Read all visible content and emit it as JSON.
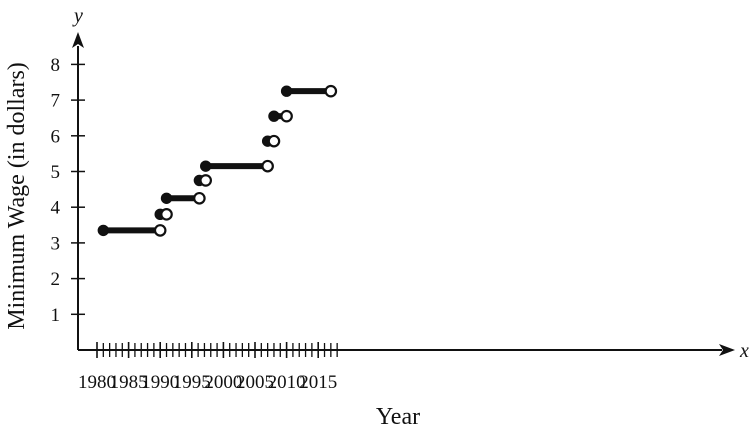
{
  "chart_data": {
    "type": "line",
    "subtype": "step",
    "xlabel": "Year",
    "ylabel": "Minimum Wage (in dollars)",
    "x_var": "x",
    "y_var": "y",
    "xlim": [
      1979,
      2020
    ],
    "ylim": [
      0,
      8.8
    ],
    "x_ticks": [
      1980,
      1985,
      1990,
      1995,
      2000,
      2005,
      2010,
      2015
    ],
    "y_ticks": [
      1,
      2,
      3,
      4,
      5,
      6,
      7,
      8
    ],
    "x_minor_step": 1,
    "grid": false,
    "segments": [
      {
        "x_start": 1981,
        "x_end": 1990,
        "y": 3.35
      },
      {
        "x_start": 1990,
        "x_end": 1991,
        "y": 3.8
      },
      {
        "x_start": 1991,
        "x_end": 1996.2,
        "y": 4.25
      },
      {
        "x_start": 1996.2,
        "x_end": 1997.2,
        "y": 4.75
      },
      {
        "x_start": 1997.2,
        "x_end": 2007,
        "y": 5.15
      },
      {
        "x_start": 2007,
        "x_end": 2008,
        "y": 5.85
      },
      {
        "x_start": 2008,
        "x_end": 2010,
        "y": 6.55
      },
      {
        "x_start": 2010,
        "x_end": 2017,
        "y": 7.25
      }
    ],
    "markers": {
      "start": "closed",
      "end": "open"
    }
  }
}
